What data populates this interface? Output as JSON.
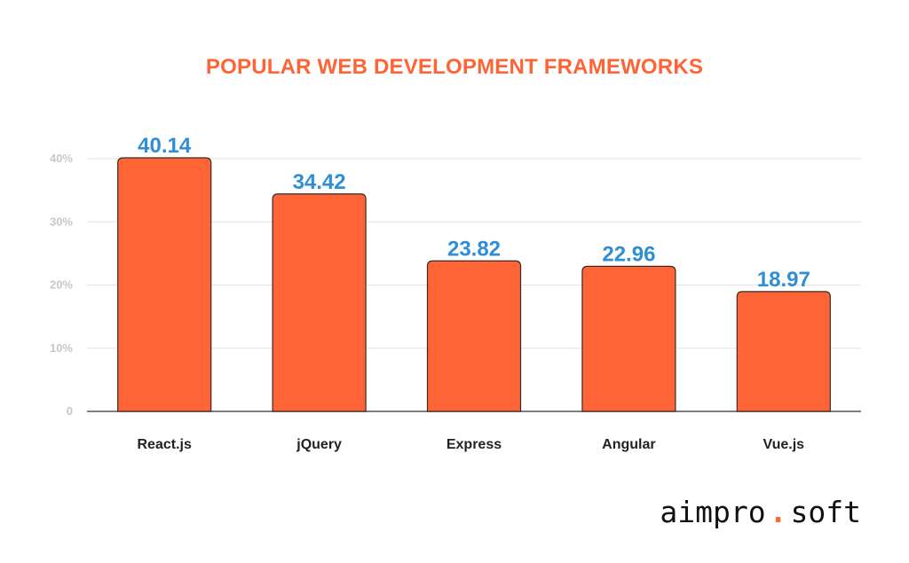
{
  "colors": {
    "accent": "#ff6436",
    "title": "#ff6436",
    "bar": "#ff6436",
    "bar_stroke": "#3a2a24",
    "data_label": "#2f8fd6",
    "grid": "#e4e4e4",
    "axis": "#555555",
    "logo_dot": "#ff6436"
  },
  "logo": {
    "left": "aimpro",
    "dot": ".",
    "right": "soft"
  },
  "chart_data": {
    "type": "bar",
    "title": "POPULAR WEB DEVELOPMENT FRAMEWORKS",
    "xlabel": "",
    "ylabel": "",
    "categories": [
      "React.js",
      "jQuery",
      "Express",
      "Angular",
      "Vue.js"
    ],
    "values": [
      40.14,
      34.42,
      23.82,
      22.96,
      18.97
    ],
    "data_labels": [
      "40.14",
      "34.42",
      "23.82",
      "22.96",
      "18.97"
    ],
    "ylim": [
      0,
      40
    ],
    "yticks": [
      0,
      10,
      20,
      30,
      40
    ],
    "ytick_labels": [
      "0",
      "10%",
      "20%",
      "30%",
      "40%"
    ],
    "grid": true,
    "legend": "none"
  }
}
